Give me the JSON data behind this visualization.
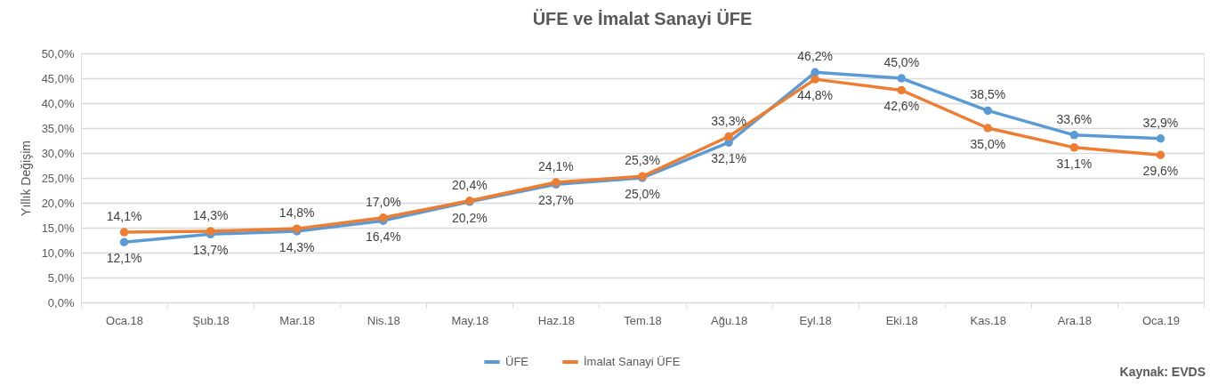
{
  "chart_data": {
    "type": "line",
    "title": "ÜFE ve İmalat Sanayi ÜFE",
    "ylabel": "Yıllık Değişim",
    "categories": [
      "Oca.18",
      "Şub.18",
      "Mar.18",
      "Nis.18",
      "May.18",
      "Haz.18",
      "Tem.18",
      "Ağu.18",
      "Eyl.18",
      "Eki.18",
      "Kas.18",
      "Ara.18",
      "Oca.19"
    ],
    "series": [
      {
        "name": "ÜFE",
        "color": "#5b9bd5",
        "values": [
          12.1,
          13.7,
          14.3,
          16.4,
          20.2,
          23.7,
          25.0,
          32.1,
          46.2,
          45.0,
          38.5,
          33.6,
          32.9
        ],
        "value_labels": [
          "12,1%",
          "13,7%",
          "14,3%",
          "16,4%",
          "20,2%",
          "23,7%",
          "25,0%",
          "32,1%",
          "46,2%",
          "45,0%",
          "38,5%",
          "33,6%",
          "32,9%"
        ]
      },
      {
        "name": "İmalat Sanayi ÜFE",
        "color": "#ed7d31",
        "values": [
          14.1,
          14.3,
          14.8,
          17.0,
          20.4,
          24.1,
          25.3,
          33.3,
          44.8,
          42.6,
          35.0,
          31.1,
          29.6
        ],
        "value_labels": [
          "14,1%",
          "14,3%",
          "14,8%",
          "17,0%",
          "20,4%",
          "24,1%",
          "25,3%",
          "33,3%",
          "44,8%",
          "42,6%",
          "35,0%",
          "31,1%",
          "29,6%"
        ]
      }
    ],
    "ylim": [
      0,
      50
    ],
    "yticks": [
      {
        "value": 0,
        "label": "0,0%"
      },
      {
        "value": 5,
        "label": "5,0%"
      },
      {
        "value": 10,
        "label": "10,0%"
      },
      {
        "value": 15,
        "label": "15,0%"
      },
      {
        "value": 20,
        "label": "20,0%"
      },
      {
        "value": 25,
        "label": "25,0%"
      },
      {
        "value": 30,
        "label": "30,0%"
      },
      {
        "value": 35,
        "label": "35,0%"
      },
      {
        "value": 40,
        "label": "40,0%"
      },
      {
        "value": 45,
        "label": "45,0%"
      },
      {
        "value": 50,
        "label": "50,0%"
      }
    ],
    "grid": "y",
    "legend": "bottom",
    "marker": "circle",
    "line_style": "solid",
    "annotations": [
      "Kaynak: EVDS"
    ]
  }
}
